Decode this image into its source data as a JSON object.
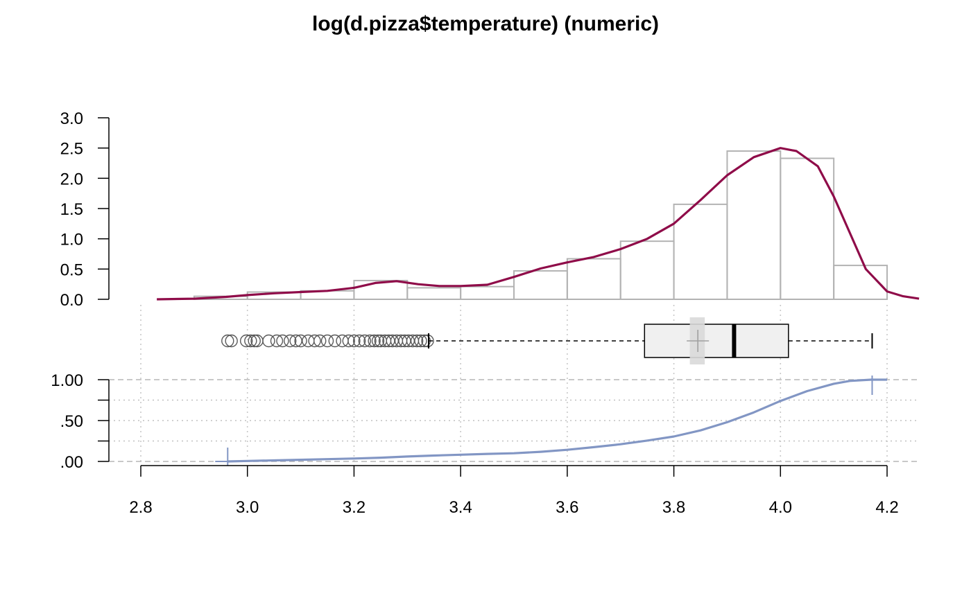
{
  "chart_data": [
    {
      "panel": "histogram-density",
      "type": "bar",
      "title": "log(d.pizza$temperature) (numeric)",
      "y_ticks": [
        "0.0",
        "0.5",
        "1.0",
        "1.5",
        "2.0",
        "2.5",
        "3.0"
      ],
      "ylim": [
        0,
        3.0
      ],
      "xlim": [
        2.8,
        4.2
      ],
      "bins": [
        {
          "from": 2.9,
          "to": 3.0,
          "density": 0.05
        },
        {
          "from": 3.0,
          "to": 3.1,
          "density": 0.12
        },
        {
          "from": 3.1,
          "to": 3.2,
          "density": 0.14
        },
        {
          "from": 3.2,
          "to": 3.3,
          "density": 0.31
        },
        {
          "from": 3.3,
          "to": 3.4,
          "density": 0.19
        },
        {
          "from": 3.4,
          "to": 3.5,
          "density": 0.21
        },
        {
          "from": 3.5,
          "to": 3.6,
          "density": 0.47
        },
        {
          "from": 3.6,
          "to": 3.7,
          "density": 0.67
        },
        {
          "from": 3.7,
          "to": 3.8,
          "density": 0.96
        },
        {
          "from": 3.8,
          "to": 3.9,
          "density": 1.57
        },
        {
          "from": 3.9,
          "to": 4.0,
          "density": 2.45
        },
        {
          "from": 4.0,
          "to": 4.1,
          "density": 2.33
        },
        {
          "from": 4.1,
          "to": 4.2,
          "density": 0.56
        }
      ],
      "density_curve": {
        "x": [
          2.83,
          2.9,
          2.96,
          3.0,
          3.05,
          3.1,
          3.15,
          3.2,
          3.24,
          3.28,
          3.32,
          3.36,
          3.4,
          3.45,
          3.5,
          3.55,
          3.6,
          3.65,
          3.7,
          3.75,
          3.8,
          3.85,
          3.9,
          3.95,
          4.0,
          4.03,
          4.07,
          4.1,
          4.13,
          4.16,
          4.2,
          4.23,
          4.26
        ],
        "y": [
          0.0,
          0.01,
          0.04,
          0.07,
          0.1,
          0.12,
          0.14,
          0.19,
          0.27,
          0.3,
          0.25,
          0.22,
          0.22,
          0.24,
          0.37,
          0.51,
          0.61,
          0.7,
          0.83,
          1.0,
          1.25,
          1.64,
          2.05,
          2.35,
          2.5,
          2.45,
          2.2,
          1.7,
          1.1,
          0.5,
          0.13,
          0.05,
          0.01
        ]
      },
      "colors": {
        "bars": "#b3b3b3",
        "density": "#8f0c49"
      }
    },
    {
      "panel": "boxplot",
      "type": "box",
      "whisker_low": 3.34,
      "q1": 3.745,
      "median": 3.913,
      "q3": 4.015,
      "whisker_high": 4.172,
      "mean": 3.845,
      "mean_ci": [
        3.83,
        3.858
      ],
      "outliers": [
        2.963,
        2.97,
        2.998,
        3.006,
        3.013,
        3.018,
        3.04,
        3.055,
        3.066,
        3.08,
        3.091,
        3.1,
        3.114,
        3.126,
        3.136,
        3.15,
        3.164,
        3.178,
        3.19,
        3.2,
        3.21,
        3.22,
        3.23,
        3.238,
        3.245,
        3.25,
        3.258,
        3.265,
        3.272,
        3.28,
        3.288,
        3.295,
        3.302,
        3.31,
        3.318,
        3.325,
        3.332,
        3.338
      ],
      "colors": {
        "box_fill": "#f0f0f0",
        "mean_ci": "#d9d9d9",
        "outlier": "#595959"
      }
    },
    {
      "panel": "ecdf",
      "type": "line",
      "y_ticks": [
        ".00",
        ".50",
        "1.00"
      ],
      "ylim": [
        0,
        1
      ],
      "x": [
        2.963,
        3.0,
        3.05,
        3.1,
        3.15,
        3.2,
        3.25,
        3.3,
        3.35,
        3.4,
        3.45,
        3.5,
        3.55,
        3.6,
        3.65,
        3.7,
        3.75,
        3.8,
        3.85,
        3.9,
        3.95,
        4.0,
        4.05,
        4.1,
        4.13,
        4.17,
        4.2
      ],
      "y": [
        0.0,
        0.006,
        0.013,
        0.02,
        0.028,
        0.036,
        0.046,
        0.06,
        0.072,
        0.082,
        0.092,
        0.1,
        0.118,
        0.142,
        0.175,
        0.21,
        0.255,
        0.305,
        0.38,
        0.48,
        0.6,
        0.74,
        0.86,
        0.95,
        0.985,
        1.0,
        1.0
      ],
      "min_marker": 2.963,
      "max_marker": 4.172,
      "colors": {
        "line": "#8296c4"
      }
    }
  ],
  "x_axis": {
    "ticks": [
      "2.8",
      "3.0",
      "3.2",
      "3.4",
      "3.6",
      "3.8",
      "4.0",
      "4.2"
    ]
  }
}
